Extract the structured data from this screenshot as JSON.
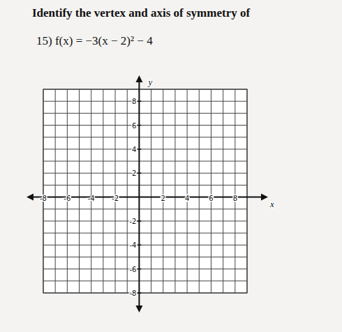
{
  "chart_data": {
    "type": "line",
    "title": "Identify the vertex and axis of symmetry of",
    "subtitle": "15) f(x) = −3(x − 2)² − 4",
    "x_label": "x",
    "y_label": "y",
    "xlim": [
      -8,
      9
    ],
    "ylim": [
      -8,
      9
    ],
    "xticks": [
      -8,
      -6,
      -4,
      -2,
      2,
      4,
      6,
      8
    ],
    "yticks": [
      -8,
      -6,
      -4,
      -2,
      2,
      4,
      6,
      8
    ],
    "grid": true,
    "series": []
  }
}
